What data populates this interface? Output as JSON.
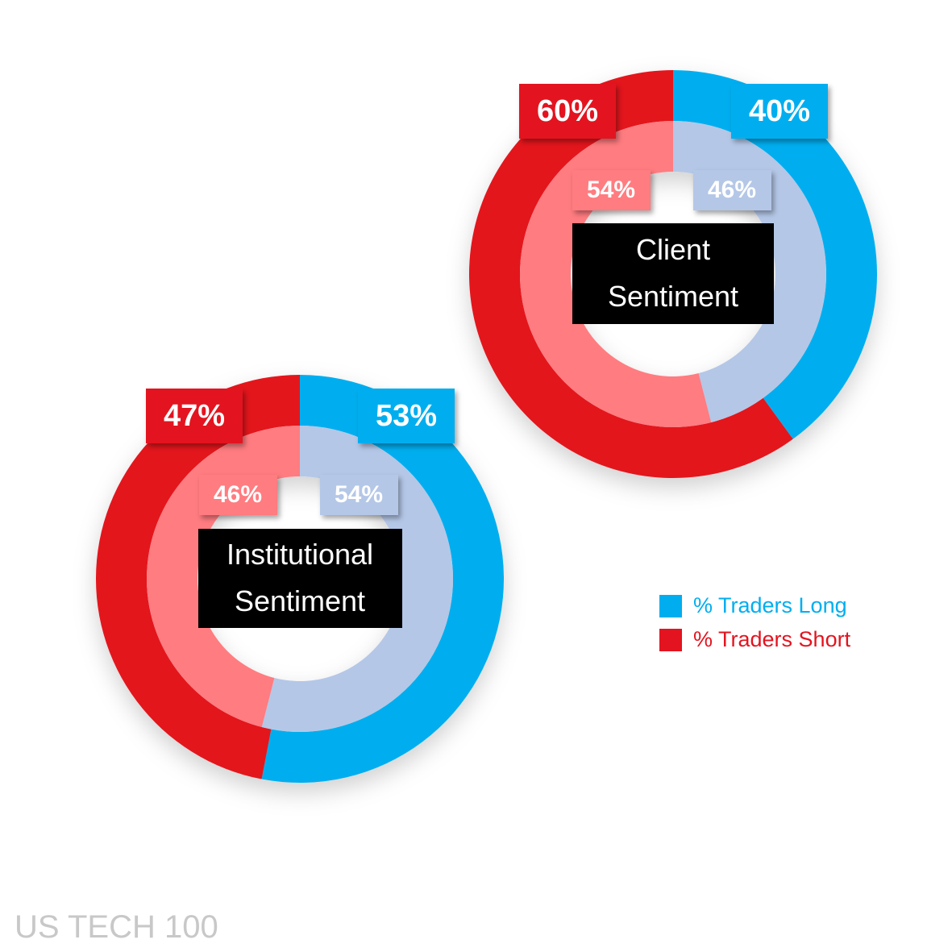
{
  "chart_data": [
    {
      "type": "donut",
      "title": "Client Sentiment",
      "categories": [
        "% Traders Long",
        "% Traders Short"
      ],
      "series": [
        {
          "color": [
            "#00aeef",
            "#e3141f"
          ],
          "values": [
            40,
            60
          ],
          "value_labels": [
            "40%",
            "60%"
          ]
        },
        {
          "color": [
            "#b4c7e7",
            "#ff7c80"
          ],
          "values": [
            46,
            54
          ],
          "value_labels": [
            "46%",
            "54%"
          ]
        }
      ]
    },
    {
      "type": "donut",
      "title": "Institutional Sentiment",
      "categories": [
        "% Traders Long",
        "% Traders Short"
      ],
      "series": [
        {
          "color": [
            "#00aeef",
            "#e3141f"
          ],
          "values": [
            53,
            47
          ],
          "value_labels": [
            "53%",
            "47%"
          ]
        },
        {
          "color": [
            "#b4c7e7",
            "#ff7c80"
          ],
          "values": [
            54,
            46
          ],
          "value_labels": [
            "54%",
            "46%"
          ]
        }
      ]
    }
  ],
  "footer": "US TECH 100"
}
